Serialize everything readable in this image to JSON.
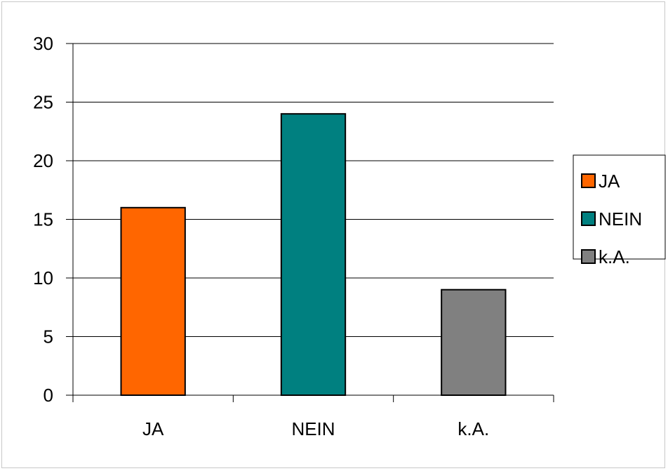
{
  "chart_data": {
    "type": "bar",
    "categories": [
      "JA",
      "NEIN",
      "k.A."
    ],
    "values": [
      16,
      24,
      9
    ],
    "colors": [
      "#ff6600",
      "#008080",
      "#808080"
    ],
    "ylim": [
      0,
      30
    ],
    "yticks": [
      0,
      5,
      10,
      15,
      20,
      25,
      30
    ],
    "grid": true,
    "legend": {
      "placement": "right",
      "entries": [
        "JA",
        "NEIN",
        "k.A."
      ]
    }
  }
}
